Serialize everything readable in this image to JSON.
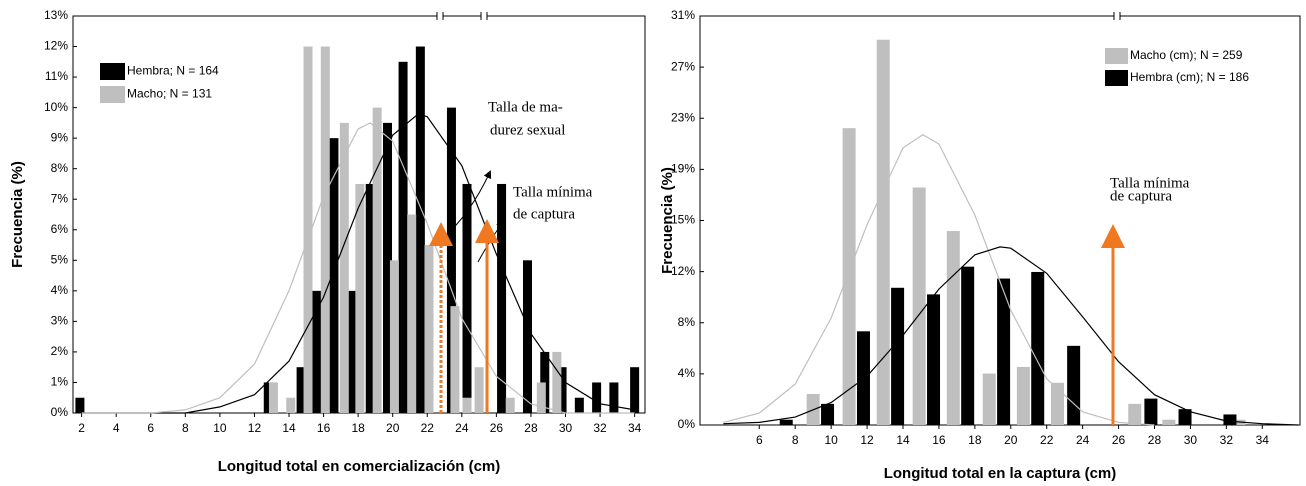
{
  "chart_data": [
    {
      "type": "bar",
      "ylabel": "Frecuencia (%)",
      "xlabel": "Longitud total en comercialización (cm)",
      "xlim": [
        1.5,
        34.6
      ],
      "xticks": [
        2,
        4,
        6,
        8,
        10,
        12,
        14,
        16,
        18,
        20,
        22,
        24,
        26,
        28,
        30,
        32,
        34
      ],
      "ylim": [
        0,
        13
      ],
      "yticks": [
        {
          "value": 0,
          "label": "0%"
        },
        {
          "value": 1,
          "label": "1%"
        },
        {
          "value": 2,
          "label": "2%"
        },
        {
          "value": 3,
          "label": "3%"
        },
        {
          "value": 4,
          "label": "4%"
        },
        {
          "value": 5,
          "label": "5%"
        },
        {
          "value": 6,
          "label": "6%"
        },
        {
          "value": 7,
          "label": "7%"
        },
        {
          "value": 8,
          "label": "8%"
        },
        {
          "value": 9,
          "label": "9%"
        },
        {
          "value": 10,
          "label": "10%"
        },
        {
          "value": 11,
          "label": "11%"
        },
        {
          "value": 12,
          "label": "12%"
        },
        {
          "value": 13,
          "label": "13%"
        }
      ],
      "legend": "upper left",
      "series": [
        {
          "name": "Hembra; N = 164",
          "color": "#000000",
          "x": [
            1.9,
            12.8,
            14.7,
            15.6,
            16.6,
            17.6,
            18.7,
            19.7,
            20.6,
            21.6,
            23.4,
            24.3,
            26.3,
            27.8,
            28.8,
            29.8,
            30.8,
            31.8,
            32.8,
            34.0
          ],
          "values": [
            0.5,
            1,
            1.5,
            4,
            9,
            4,
            7.5,
            9.5,
            11.5,
            12,
            10,
            7.5,
            7.5,
            5,
            2,
            1.5,
            0.5,
            1,
            1,
            1.5
          ]
        },
        {
          "name": "Macho; N = 131",
          "color": "#bfbfbf",
          "x": [
            13.1,
            14.1,
            15.1,
            16.1,
            17.2,
            18.1,
            19.1,
            20.1,
            21.1,
            22.1,
            23.6,
            24.3,
            25.0,
            26.8,
            28.6,
            29.5
          ],
          "values": [
            1,
            0.5,
            12,
            12,
            9.5,
            7.5,
            10,
            5,
            6.5,
            5.5,
            3.5,
            0.5,
            1.5,
            0.5,
            1,
            2
          ]
        }
      ],
      "curves": [
        {
          "color": "#000000",
          "x": [
            2,
            4,
            6,
            8,
            10,
            12,
            14,
            16,
            18,
            20,
            21.5,
            22,
            24,
            26,
            28,
            30,
            32,
            34
          ],
          "values": [
            0.0,
            0.0,
            0.0,
            0.0,
            0.2,
            0.6,
            1.7,
            3.8,
            6.7,
            9.1,
            9.8,
            9.7,
            8.1,
            5.2,
            2.6,
            1.0,
            0.3,
            0.1
          ]
        },
        {
          "color": "#bfbfbf",
          "x": [
            2,
            4,
            6,
            8,
            10,
            12,
            14,
            16,
            18,
            18.7,
            20,
            22,
            24,
            26,
            28,
            30,
            32,
            34
          ],
          "values": [
            0.0,
            0.0,
            0.0,
            0.1,
            0.5,
            1.6,
            4.0,
            7.1,
            9.3,
            9.5,
            8.9,
            6.2,
            3.1,
            1.2,
            0.3,
            0.0,
            0.0,
            0.0
          ]
        }
      ],
      "annotations": [
        [
          "Talla de ma-",
          "durez sexual"
        ],
        [
          "Talla mínima",
          "de captura"
        ]
      ]
    },
    {
      "type": "bar",
      "ylabel": "Frecuencia (%)",
      "xlabel": "Longitud total en la captura (cm)",
      "xlim": [
        2.7,
        36.1
      ],
      "xticks": [
        6,
        8,
        10,
        12,
        14,
        16,
        18,
        20,
        22,
        24,
        26,
        28,
        30,
        32,
        34
      ],
      "ylim": [
        0,
        31
      ],
      "yticks": [
        {
          "value": 0,
          "label": "0%"
        },
        {
          "value": 3.875,
          "label": "4%"
        },
        {
          "value": 7.75,
          "label": "8%"
        },
        {
          "value": 11.625,
          "label": "12%"
        },
        {
          "value": 15.5,
          "label": "15%"
        },
        {
          "value": 19.375,
          "label": "19%"
        },
        {
          "value": 23.25,
          "label": "23%"
        },
        {
          "value": 27.125,
          "label": "27%"
        },
        {
          "value": 31,
          "label": "31%"
        }
      ],
      "legend": "upper right",
      "series": [
        {
          "name": "Macho (cm); N = 259",
          "color": "#bfbfbf",
          "x": [
            9.0,
            11.0,
            12.9,
            14.9,
            16.8,
            18.8,
            20.7,
            22.6,
            26.9,
            28.8,
            32.7
          ],
          "values": [
            2.35,
            22.5,
            29.2,
            18.0,
            14.7,
            3.9,
            4.4,
            3.2,
            1.6,
            0.4,
            0.4
          ]
        },
        {
          "name": "Hembra (cm); N = 186",
          "color": "#000000",
          "x": [
            7.5,
            9.8,
            11.8,
            13.7,
            15.7,
            17.6,
            19.6,
            21.5,
            23.5,
            27.8,
            29.7,
            32.2
          ],
          "values": [
            0.4,
            1.6,
            7.1,
            10.4,
            9.9,
            12.0,
            11.1,
            11.6,
            6.0,
            2.0,
            1.2,
            0.8
          ]
        }
      ],
      "curves": [
        {
          "color": "#bfbfbf",
          "x": [
            4,
            6,
            8,
            10,
            12,
            14,
            15.1,
            16,
            18,
            20,
            22,
            24,
            26,
            28
          ],
          "values": [
            0.2,
            0.9,
            3.1,
            8.1,
            15.2,
            21.0,
            22,
            21.3,
            15.9,
            8.7,
            3.5,
            1.0,
            0.2,
            0.0
          ]
        },
        {
          "color": "#000000",
          "x": [
            4,
            6,
            8,
            10,
            12,
            14,
            16,
            18,
            19.4,
            20,
            22,
            24,
            26,
            28,
            30,
            32,
            34,
            36
          ],
          "values": [
            0.1,
            0.2,
            0.6,
            1.7,
            3.7,
            6.8,
            10.3,
            12.9,
            13.5,
            13.4,
            11.5,
            8.2,
            4.8,
            2.3,
            1.0,
            0.3,
            0.1,
            0.0
          ]
        }
      ],
      "annotations": [
        [
          "Talla mínima",
          "de captura"
        ]
      ]
    }
  ]
}
